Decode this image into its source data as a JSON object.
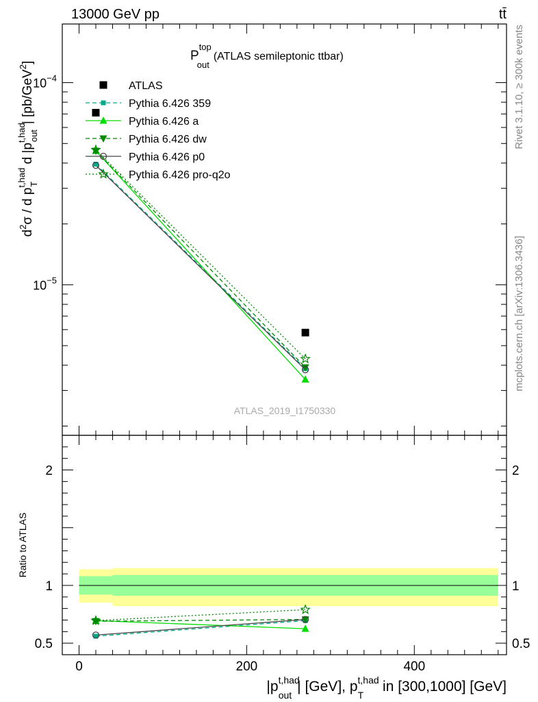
{
  "header": {
    "energy_label": "13000 GeV pp",
    "process_label": "tt̄"
  },
  "side_labels": {
    "rivet": "Rivet 3.1.10, ≥ 300k events",
    "mcplots": "mcplots.cern.ch [arXiv:1306.3436]"
  },
  "chart_data": [
    {
      "type": "line",
      "panel": "main",
      "title_main": "P",
      "title_sup": "top",
      "title_sub": "out",
      "title_rest": "(ATLAS semileptonic ttbar)",
      "watermark": "ATLAS_2019_I1750330",
      "y_scale": "log",
      "ylim": [
        1.8e-06,
        0.000195
      ],
      "xlim": [
        -20,
        510
      ],
      "ylabel": "d²σ / d p_T^{t,had} d |p_out^{t,had}| [pb/GeV²]",
      "y_tick_labels": [
        {
          "value": 0.0001,
          "base": "10",
          "exp": "−4"
        },
        {
          "value": 1e-05,
          "base": "10",
          "exp": "−5"
        }
      ],
      "x": [
        20,
        270
      ],
      "series": [
        {
          "name": "ATLAS",
          "color": "#000000",
          "marker": "square",
          "line": "none",
          "values": [
            7.1e-05,
            5.8e-06
          ]
        },
        {
          "name": "Pythia 6.426 359",
          "color": "#00aa88",
          "marker": "square-small",
          "line": "dashed",
          "values": [
            3.95e-05,
            3.85e-06
          ]
        },
        {
          "name": "Pythia 6.426 a",
          "color": "#00dd00",
          "marker": "triangle-up",
          "line": "solid",
          "values": [
            4.6e-05,
            3.4e-06
          ]
        },
        {
          "name": "Pythia 6.426 dw",
          "color": "#008800",
          "marker": "triangle-down",
          "line": "dashed",
          "values": [
            4.6e-05,
            3.9e-06
          ]
        },
        {
          "name": "Pythia 6.426 p0",
          "color": "#444444",
          "marker": "circle-open",
          "line": "solid",
          "values": [
            3.9e-05,
            3.8e-06
          ]
        },
        {
          "name": "Pythia 6.426 pro-q2o",
          "color": "#008800",
          "marker": "star-open",
          "line": "dotted",
          "values": [
            4.65e-05,
            4.3e-06
          ]
        }
      ]
    },
    {
      "type": "line",
      "panel": "ratio",
      "ylabel": "Ratio to ATLAS",
      "y_scale": "linear",
      "ylim": [
        0.4,
        2.3
      ],
      "xlim": [
        -20,
        510
      ],
      "xlabel": "|p_out^{t,had}| [GeV], p_T^{t,had} in [300,1000] [GeV]",
      "y_ticks": [
        0.5,
        1,
        2
      ],
      "y_tick_labels": [
        "0.5",
        "1",
        "2"
      ],
      "x_ticks": [
        0,
        200,
        400
      ],
      "x_tick_labels": [
        "0",
        "200",
        "400"
      ],
      "bands": {
        "bin_edges": [
          0,
          40,
          500
        ],
        "outer_low": [
          0.85,
          0.82
        ],
        "outer_high": [
          1.14,
          1.15
        ],
        "inner_low": [
          0.92,
          0.91
        ],
        "inner_high": [
          1.08,
          1.09
        ],
        "outer_color": "#ffff99",
        "inner_color": "#99ff99"
      },
      "x": [
        20,
        270
      ],
      "series": [
        {
          "name": "Pythia 6.426 359",
          "color": "#00aa88",
          "marker": "square-small",
          "line": "dashed",
          "values": [
            0.56,
            0.695
          ]
        },
        {
          "name": "Pythia 6.426 a",
          "color": "#00dd00",
          "marker": "triangle-up",
          "line": "solid",
          "values": [
            0.695,
            0.625
          ]
        },
        {
          "name": "Pythia 6.426 dw",
          "color": "#008800",
          "marker": "triangle-down",
          "line": "dashed",
          "values": [
            0.69,
            0.705
          ]
        },
        {
          "name": "Pythia 6.426 p0",
          "color": "#444444",
          "marker": "circle-open",
          "line": "solid",
          "values": [
            0.57,
            0.705
          ]
        },
        {
          "name": "Pythia 6.426 pro-q2o",
          "color": "#008800",
          "marker": "star-open",
          "line": "dotted",
          "values": [
            0.695,
            0.79
          ]
        }
      ]
    }
  ]
}
